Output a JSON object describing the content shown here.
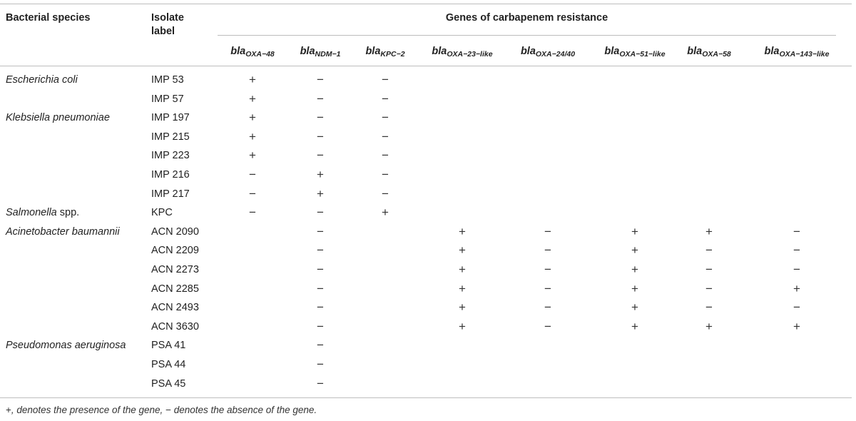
{
  "header": {
    "species_label": "Bacterial species",
    "isolate_label": "Isolate label",
    "group_label": "Genes of carbapenem resistance",
    "genes": [
      {
        "base": "bla",
        "sub": "OXA−48"
      },
      {
        "base": "bla",
        "sub": "NDM−1"
      },
      {
        "base": "bla",
        "sub": "KPC−2"
      },
      {
        "base": "bla",
        "sub": "OXA−23−like"
      },
      {
        "base": "bla",
        "sub": "OXA−24/40"
      },
      {
        "base": "bla",
        "sub": "OXA−51−like"
      },
      {
        "base": "bla",
        "sub": "OXA−58"
      },
      {
        "base": "bla",
        "sub": "OXA−143−like"
      }
    ]
  },
  "rows": [
    {
      "species": "Escherichia coli",
      "species_suffix": "",
      "isolate": "IMP 53",
      "values": [
        "+",
        "−",
        "−",
        "",
        "",
        "",
        "",
        ""
      ]
    },
    {
      "species": "",
      "species_suffix": "",
      "isolate": "IMP 57",
      "values": [
        "+",
        "−",
        "−",
        "",
        "",
        "",
        "",
        ""
      ]
    },
    {
      "species": "Klebsiella pneumoniae",
      "species_suffix": "",
      "isolate": "IMP 197",
      "values": [
        "+",
        "−",
        "−",
        "",
        "",
        "",
        "",
        ""
      ]
    },
    {
      "species": "",
      "species_suffix": "",
      "isolate": "IMP 215",
      "values": [
        "+",
        "−",
        "−",
        "",
        "",
        "",
        "",
        ""
      ]
    },
    {
      "species": "",
      "species_suffix": "",
      "isolate": "IMP 223",
      "values": [
        "+",
        "−",
        "−",
        "",
        "",
        "",
        "",
        ""
      ]
    },
    {
      "species": "",
      "species_suffix": "",
      "isolate": "IMP 216",
      "values": [
        "−",
        "+",
        "−",
        "",
        "",
        "",
        "",
        ""
      ]
    },
    {
      "species": "",
      "species_suffix": "",
      "isolate": "IMP 217",
      "values": [
        "−",
        "+",
        "−",
        "",
        "",
        "",
        "",
        ""
      ]
    },
    {
      "species": "Salmonella",
      "species_suffix": " spp.",
      "isolate": "KPC",
      "values": [
        "−",
        "−",
        "+",
        "",
        "",
        "",
        "",
        ""
      ]
    },
    {
      "species": "Acinetobacter baumannii",
      "species_suffix": "",
      "isolate": "ACN 2090",
      "values": [
        "",
        "−",
        "",
        "+",
        "−",
        "+",
        "+",
        "−"
      ]
    },
    {
      "species": "",
      "species_suffix": "",
      "isolate": "ACN 2209",
      "values": [
        "",
        "−",
        "",
        "+",
        "−",
        "+",
        "−",
        "−"
      ]
    },
    {
      "species": "",
      "species_suffix": "",
      "isolate": "ACN 2273",
      "values": [
        "",
        "−",
        "",
        "+",
        "−",
        "+",
        "−",
        "−"
      ]
    },
    {
      "species": "",
      "species_suffix": "",
      "isolate": "ACN 2285",
      "values": [
        "",
        "−",
        "",
        "+",
        "−",
        "+",
        "−",
        "+"
      ]
    },
    {
      "species": "",
      "species_suffix": "",
      "isolate": "ACN 2493",
      "values": [
        "",
        "−",
        "",
        "+",
        "−",
        "+",
        "−",
        "−"
      ]
    },
    {
      "species": "",
      "species_suffix": "",
      "isolate": "ACN 3630",
      "values": [
        "",
        "−",
        "",
        "+",
        "−",
        "+",
        "+",
        "+"
      ]
    },
    {
      "species": "Pseudomonas aeruginosa",
      "species_suffix": "",
      "isolate": "PSA 41",
      "values": [
        "",
        "−",
        "",
        "",
        "",
        "",
        "",
        ""
      ]
    },
    {
      "species": "",
      "species_suffix": "",
      "isolate": "PSA 44",
      "values": [
        "",
        "−",
        "",
        "",
        "",
        "",
        "",
        ""
      ]
    },
    {
      "species": "",
      "species_suffix": "",
      "isolate": "PSA 45",
      "values": [
        "",
        "−",
        "",
        "",
        "",
        "",
        "",
        ""
      ]
    }
  ],
  "footnote": {
    "plus": "+",
    "plus_text": ", denotes the presence of the gene, ",
    "minus": "−",
    "minus_text": " denotes the absence of the gene."
  }
}
